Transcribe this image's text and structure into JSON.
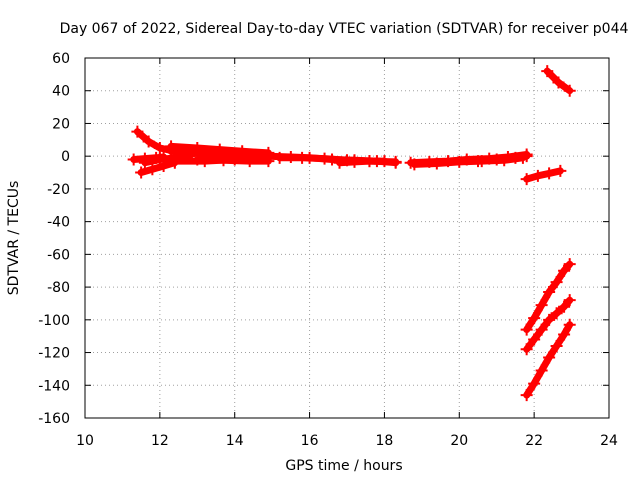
{
  "chart_data": {
    "type": "scatter",
    "title": "Day 067 of 2022, Sidereal Day-to-day VTEC variation (SDTVAR) for receiver p044",
    "xlabel": "GPS time / hours",
    "ylabel": "SDTVAR / TECUs",
    "xlim": [
      10,
      24
    ],
    "ylim": [
      -160,
      60
    ],
    "xticks": [
      "10",
      "12",
      "14",
      "16",
      "18",
      "20",
      "22",
      "24"
    ],
    "yticks": [
      "60",
      "40",
      "20",
      "0",
      "-20",
      "-40",
      "-60",
      "-80",
      "-100",
      "-120",
      "-140",
      "-160"
    ],
    "grid": true,
    "legend": "none",
    "marker": "plus",
    "series": [
      {
        "color": "#ff0000",
        "segments": [
          {
            "x": [
              11.4,
              11.7,
              12.0,
              12.4,
              12.8
            ],
            "y": [
              15,
              9,
              5,
              3,
              2
            ]
          },
          {
            "x": [
              11.3,
              11.6,
              11.9,
              12.1
            ],
            "y": [
              -2,
              -1.5,
              -1,
              -0.5
            ]
          },
          {
            "x": [
              11.5,
              11.8,
              12.1,
              12.4
            ],
            "y": [
              -10,
              -8,
              -6,
              -4
            ]
          },
          {
            "x": [
              11.6,
              12.0,
              12.4,
              12.8
            ],
            "y": [
              -4,
              -2,
              -1,
              0
            ]
          },
          {
            "x": [
              12.3,
              13.0,
              13.6,
              14.2,
              14.9
            ],
            "y": [
              6,
              5,
              4,
              3,
              2
            ]
          },
          {
            "x": [
              12.3,
              13.0,
              13.6,
              14.2,
              14.9
            ],
            "y": [
              3,
              2,
              1,
              0,
              0
            ]
          },
          {
            "x": [
              12.4,
              13.2,
              14.0,
              14.9
            ],
            "y": [
              -3,
              -3,
              -2,
              -1
            ]
          },
          {
            "x": [
              13.0,
              13.7,
              14.4,
              14.9
            ],
            "y": [
              -2,
              -2.5,
              -3,
              -3
            ]
          },
          {
            "x": [
              14.9,
              15.5,
              16.0,
              16.6,
              17.2,
              17.8,
              18.3
            ],
            "y": [
              0,
              -0.5,
              -1,
              -2,
              -2.5,
              -3,
              -4
            ]
          },
          {
            "x": [
              15.2,
              15.8,
              16.4,
              17.0,
              17.6,
              18.3
            ],
            "y": [
              -1,
              -1,
              -1.5,
              -2.5,
              -3,
              -3.5
            ]
          },
          {
            "x": [
              16.8,
              17.2,
              17.6,
              18.0
            ],
            "y": [
              -4,
              -3.5,
              -3,
              -3
            ]
          },
          {
            "x": [
              18.7,
              19.2,
              19.7,
              20.2,
              20.8,
              21.3,
              21.8
            ],
            "y": [
              -4,
              -3.5,
              -3,
              -2,
              -1.5,
              -0.5,
              1
            ]
          },
          {
            "x": [
              18.8,
              19.4,
              20.0,
              20.6,
              21.2,
              21.7
            ],
            "y": [
              -5,
              -4.5,
              -3.5,
              -3,
              -2.5,
              -1
            ]
          },
          {
            "x": [
              20.5,
              21.0,
              21.5,
              21.8
            ],
            "y": [
              -3,
              -2,
              -1,
              0
            ]
          },
          {
            "x": [
              21.8,
              22.1,
              22.4,
              22.7
            ],
            "y": [
              -14,
              -12,
              -10.5,
              -9
            ]
          },
          {
            "x": [
              22.35,
              22.65,
              22.95
            ],
            "y": [
              52,
              45,
              40
            ]
          },
          {
            "x": [
              21.8,
              22.0,
              22.2,
              22.4,
              22.6,
              22.8,
              22.95
            ],
            "y": [
              -106,
              -99,
              -91,
              -83,
              -77,
              -70,
              -66
            ]
          },
          {
            "x": [
              21.8,
              22.0,
              22.2,
              22.4,
              22.6,
              22.8,
              22.95
            ],
            "y": [
              -118,
              -112,
              -106,
              -100,
              -96,
              -92,
              -88
            ]
          },
          {
            "x": [
              21.8,
              22.0,
              22.2,
              22.4,
              22.6,
              22.8,
              22.95
            ],
            "y": [
              -146,
              -139,
              -131,
              -123,
              -116,
              -109,
              -103
            ]
          }
        ]
      }
    ]
  }
}
